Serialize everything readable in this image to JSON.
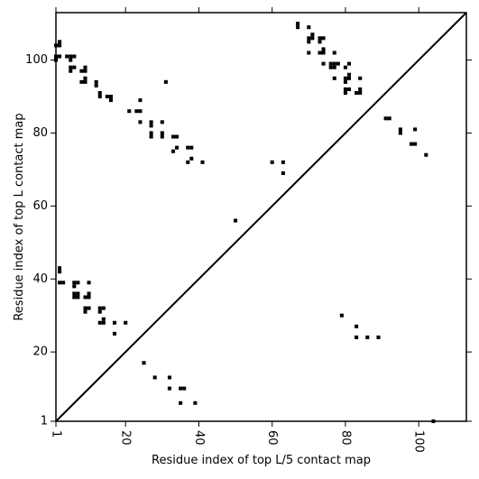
{
  "chart_data": {
    "type": "scatter",
    "xlabel": "Residue index of top L/5 contact map",
    "ylabel": "Residue index of top L contact map",
    "xlim": [
      1,
      113
    ],
    "ylim": [
      1,
      113
    ],
    "x_ticks": [
      1,
      20,
      40,
      60,
      80,
      100
    ],
    "y_ticks": [
      1,
      20,
      40,
      60,
      80,
      100
    ],
    "diagonal": true,
    "grid": false,
    "marker": "square",
    "color": "#000000",
    "series": [
      {
        "name": "",
        "points": [
          [
            1,
            100
          ],
          [
            1,
            101
          ],
          [
            1,
            104
          ],
          [
            2,
            101
          ],
          [
            2,
            104
          ],
          [
            2,
            105
          ],
          [
            4,
            101
          ],
          [
            5,
            100
          ],
          [
            5,
            101
          ],
          [
            5,
            97
          ],
          [
            5,
            98
          ],
          [
            6,
            98
          ],
          [
            6,
            101
          ],
          [
            8,
            94
          ],
          [
            8,
            97
          ],
          [
            9,
            94
          ],
          [
            9,
            95
          ],
          [
            9,
            97
          ],
          [
            9,
            98
          ],
          [
            12,
            93
          ],
          [
            12,
            94
          ],
          [
            13,
            90
          ],
          [
            13,
            91
          ],
          [
            15,
            90
          ],
          [
            16,
            89
          ],
          [
            16,
            90
          ],
          [
            21,
            86
          ],
          [
            23,
            86
          ],
          [
            24,
            86
          ],
          [
            24,
            83
          ],
          [
            24,
            89
          ],
          [
            27,
            79
          ],
          [
            27,
            80
          ],
          [
            27,
            82
          ],
          [
            27,
            83
          ],
          [
            30,
            79
          ],
          [
            30,
            80
          ],
          [
            30,
            83
          ],
          [
            31,
            94
          ],
          [
            33,
            75
          ],
          [
            33,
            79
          ],
          [
            34,
            76
          ],
          [
            34,
            79
          ],
          [
            37,
            72
          ],
          [
            37,
            76
          ],
          [
            38,
            73
          ],
          [
            38,
            76
          ],
          [
            41,
            72
          ],
          [
            67,
            109
          ],
          [
            67,
            110
          ],
          [
            70,
            102
          ],
          [
            70,
            105
          ],
          [
            70,
            106
          ],
          [
            70,
            109
          ],
          [
            71,
            106
          ],
          [
            71,
            107
          ],
          [
            73,
            102
          ],
          [
            73,
            105
          ],
          [
            73,
            106
          ],
          [
            74,
            99
          ],
          [
            74,
            102
          ],
          [
            74,
            103
          ],
          [
            74,
            106
          ],
          [
            76,
            98
          ],
          [
            76,
            99
          ],
          [
            77,
            95
          ],
          [
            77,
            98
          ],
          [
            77,
            99
          ],
          [
            77,
            102
          ],
          [
            78,
            99
          ],
          [
            80,
            91
          ],
          [
            80,
            92
          ],
          [
            80,
            94
          ],
          [
            80,
            95
          ],
          [
            80,
            98
          ],
          [
            81,
            92
          ],
          [
            81,
            95
          ],
          [
            81,
            96
          ],
          [
            81,
            99
          ],
          [
            83,
            91
          ],
          [
            84,
            91
          ],
          [
            84,
            92
          ],
          [
            84,
            95
          ],
          [
            91,
            84
          ],
          [
            92,
            84
          ],
          [
            95,
            80
          ],
          [
            95,
            81
          ],
          [
            98,
            77
          ],
          [
            99,
            77
          ],
          [
            99,
            81
          ],
          [
            102,
            74
          ],
          [
            60,
            72
          ],
          [
            63,
            69
          ],
          [
            63,
            72
          ],
          [
            50,
            56
          ],
          [
            2,
            39
          ],
          [
            2,
            42
          ],
          [
            2,
            43
          ],
          [
            3,
            39
          ],
          [
            6,
            35
          ],
          [
            6,
            36
          ],
          [
            6,
            38
          ],
          [
            6,
            39
          ],
          [
            7,
            35
          ],
          [
            7,
            36
          ],
          [
            7,
            39
          ],
          [
            9,
            31
          ],
          [
            9,
            32
          ],
          [
            9,
            35
          ],
          [
            10,
            32
          ],
          [
            10,
            35
          ],
          [
            10,
            36
          ],
          [
            10,
            39
          ],
          [
            13,
            28
          ],
          [
            13,
            31
          ],
          [
            13,
            32
          ],
          [
            14,
            28
          ],
          [
            14,
            29
          ],
          [
            14,
            32
          ],
          [
            17,
            25
          ],
          [
            17,
            28
          ],
          [
            20,
            28
          ],
          [
            25,
            17
          ],
          [
            28,
            13
          ],
          [
            32,
            10
          ],
          [
            32,
            13
          ],
          [
            35,
            6
          ],
          [
            35,
            10
          ],
          [
            36,
            10
          ],
          [
            39,
            6
          ],
          [
            79,
            30
          ],
          [
            83,
            24
          ],
          [
            83,
            27
          ],
          [
            86,
            24
          ],
          [
            89,
            24
          ],
          [
            104,
            1
          ]
        ]
      }
    ]
  }
}
